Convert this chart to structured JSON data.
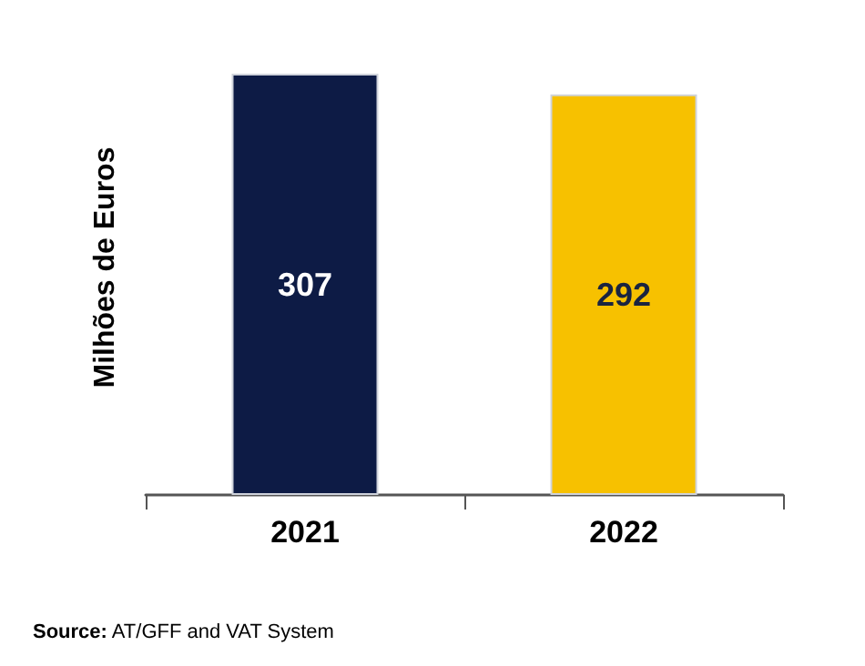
{
  "chart_data": {
    "type": "bar",
    "ylabel": "Milhões de Euros",
    "categories": [
      "2021",
      "2022"
    ],
    "values": [
      307,
      292
    ],
    "colors": [
      "#0d1b45",
      "#f7c100"
    ],
    "data_labels": true,
    "annotations": [
      "Source: AT/GFF and VAT System"
    ]
  }
}
